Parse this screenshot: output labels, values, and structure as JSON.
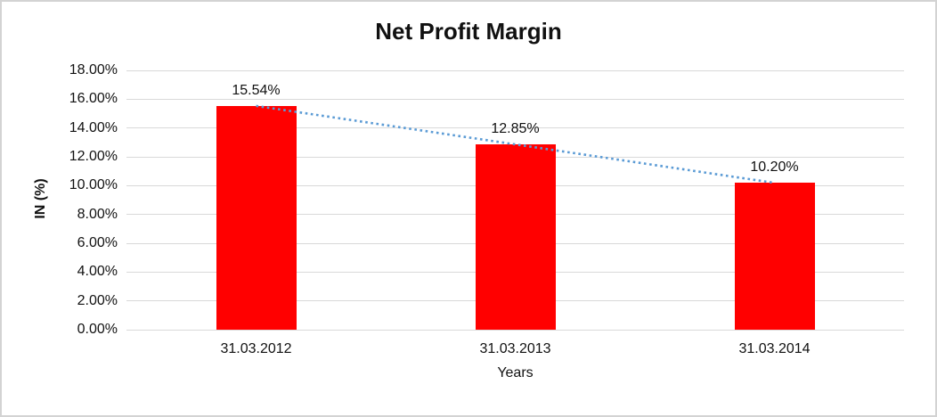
{
  "chart_data": {
    "type": "bar",
    "title": "Net Profit Margin",
    "categories": [
      "31.03.2012",
      "31.03.2013",
      "31.03.2014"
    ],
    "values": [
      15.54,
      12.85,
      10.2
    ],
    "data_labels": [
      "15.54%",
      "12.85%",
      "10.20%"
    ],
    "xlabel": "Years",
    "ylabel": "IN (%)",
    "ylim": [
      0,
      18
    ],
    "ytick_step": 2,
    "ytick_labels": [
      "0.00%",
      "2.00%",
      "4.00%",
      "6.00%",
      "8.00%",
      "10.00%",
      "12.00%",
      "14.00%",
      "16.00%",
      "18.00%"
    ],
    "grid": true,
    "legend": false,
    "bar_color": "#ff0000",
    "gridline_color": "#d9d9d9",
    "text_color": "#111111",
    "trendline": {
      "type": "linear",
      "style": "dotted",
      "color": "#5b9bd5"
    }
  }
}
